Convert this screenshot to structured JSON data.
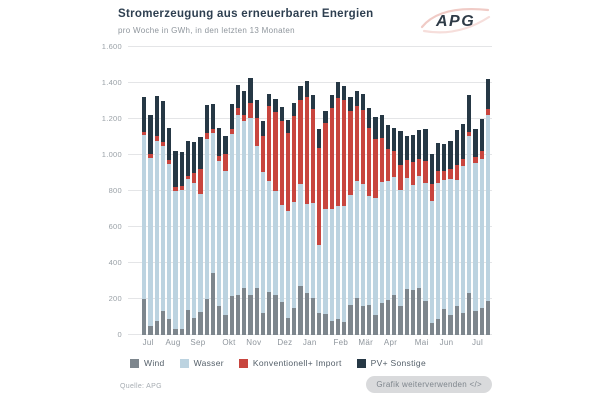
{
  "header": {
    "title": "Stromerzeugung aus erneuerbaren Energien",
    "subtitle": "pro Woche in GWh, in den letzten 13 Monaten",
    "logo_text": "APG"
  },
  "chart_data": {
    "type": "bar",
    "stacked": true,
    "unit": "GWh",
    "title": "Stromerzeugung aus erneuerbaren Energien",
    "subtitle": "pro Woche in GWh, in den letzten 13 Monaten",
    "ylim": [
      0,
      1600
    ],
    "y_tick_step": 200,
    "y_tick_labels": [
      "0",
      "200",
      "400",
      "600",
      "800",
      "1.000",
      "1.200",
      "1.400",
      "1.600"
    ],
    "grid": "horizontal",
    "legend_position": "bottom",
    "weeks": 56,
    "x_tick_labels": [
      "Jul",
      "Aug",
      "Sep",
      "Okt",
      "Nov",
      "Dez",
      "Jan",
      "Feb",
      "Mär",
      "Apr",
      "Mai",
      "Jun",
      "Jul"
    ],
    "x_tick_week_index": [
      0,
      4,
      8,
      13,
      17,
      22,
      26,
      31,
      35,
      39,
      44,
      48,
      53
    ],
    "series": [
      {
        "name": "Wind",
        "color": "#7d868d",
        "values": [
          200,
          50,
          80,
          135,
          90,
          35,
          35,
          140,
          95,
          130,
          200,
          345,
          160,
          110,
          215,
          220,
          260,
          225,
          260,
          125,
          240,
          225,
          185,
          95,
          150,
          270,
          235,
          205,
          120,
          115,
          80,
          90,
          75,
          165,
          205,
          160,
          165,
          110,
          180,
          195,
          225,
          160,
          255,
          250,
          260,
          190,
          65,
          90,
          145,
          110,
          160,
          120,
          235,
          135,
          150,
          190
        ]
      },
      {
        "name": "Wasser",
        "color": "#bcd3e0",
        "values": [
          910,
          935,
          1000,
          915,
          860,
          765,
          770,
          725,
          750,
          655,
          890,
          780,
          805,
          800,
          900,
          1000,
          930,
          980,
          790,
          780,
          615,
          575,
          535,
          595,
          590,
          570,
          495,
          530,
          380,
          585,
          620,
          625,
          640,
          615,
          650,
          680,
          610,
          650,
          670,
          660,
          655,
          645,
          615,
          585,
          625,
          655,
          680,
          755,
          715,
          755,
          700,
          820,
          870,
          820,
          830,
          1030
        ]
      },
      {
        "name": "Konventionell+ Import",
        "color": "#c8453e",
        "values": [
          20,
          20,
          25,
          20,
          20,
          25,
          25,
          20,
          55,
          135,
          30,
          20,
          30,
          95,
          30,
          40,
          35,
          85,
          155,
          200,
          415,
          440,
          470,
          430,
          475,
          465,
          595,
          520,
          540,
          480,
          560,
          600,
          590,
          465,
          420,
          410,
          375,
          330,
          245,
          180,
          145,
          140,
          100,
          125,
          95,
          120,
          95,
          65,
          50,
          60,
          85,
          40,
          25,
          35,
          45,
          35
        ]
      },
      {
        "name": "PV+ Sonstige",
        "color": "#263845",
        "values": [
          190,
          220,
          225,
          230,
          180,
          200,
          185,
          195,
          175,
          180,
          160,
          140,
          155,
          100,
          140,
          130,
          130,
          140,
          100,
          85,
          70,
          70,
          75,
          75,
          75,
          80,
          85,
          80,
          105,
          65,
          75,
          90,
          80,
          80,
          80,
          90,
          110,
          120,
          130,
          130,
          125,
          190,
          135,
          150,
          160,
          180,
          165,
          155,
          150,
          155,
          195,
          195,
          205,
          155,
          175,
          165
        ]
      }
    ]
  },
  "footer": {
    "source": "Quelle: APG",
    "reuse_button_label": "Grafik weiterverwenden </>"
  }
}
